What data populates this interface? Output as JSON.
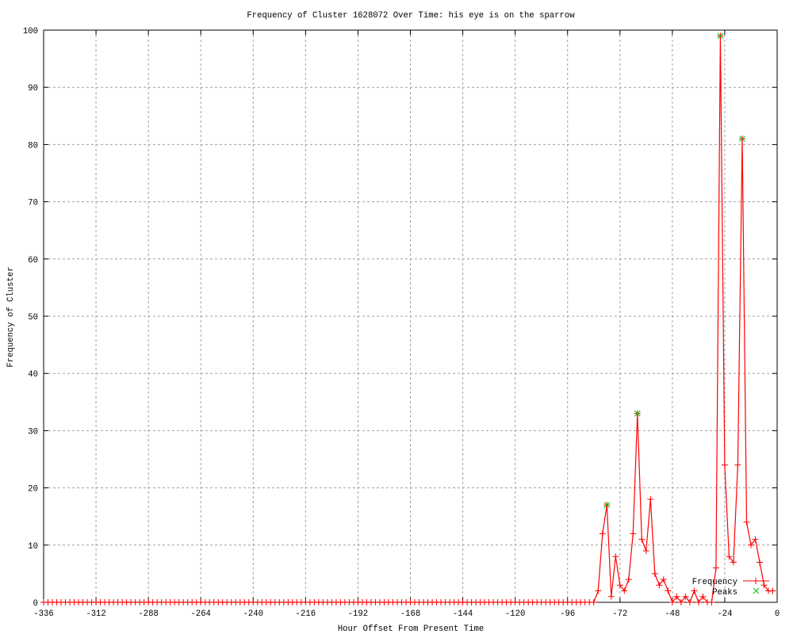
{
  "chart_data": {
    "type": "line",
    "title": "Frequency of Cluster 1628072 Over Time: his eye is on the sparrow",
    "xlabel": "Hour Offset From Present Time",
    "ylabel": "Frequency of Cluster",
    "xlim": [
      -336,
      0
    ],
    "ylim": [
      0,
      100
    ],
    "xticks": [
      -336,
      -312,
      -288,
      -264,
      -240,
      -216,
      -192,
      -168,
      -144,
      -120,
      -96,
      -72,
      -48,
      -24,
      0
    ],
    "yticks": [
      0,
      10,
      20,
      30,
      40,
      50,
      60,
      70,
      80,
      90,
      100
    ],
    "grid": true,
    "legend_position": "bottom-right",
    "series": [
      {
        "name": "Frequency",
        "color": "#ff0000",
        "marker": "plus",
        "x": [
          -336,
          -334,
          -332,
          -330,
          -328,
          -326,
          -324,
          -322,
          -320,
          -318,
          -316,
          -314,
          -312,
          -310,
          -308,
          -306,
          -304,
          -302,
          -300,
          -298,
          -296,
          -294,
          -292,
          -290,
          -288,
          -286,
          -284,
          -282,
          -280,
          -278,
          -276,
          -274,
          -272,
          -270,
          -268,
          -266,
          -264,
          -262,
          -260,
          -258,
          -256,
          -254,
          -252,
          -250,
          -248,
          -246,
          -244,
          -242,
          -240,
          -238,
          -236,
          -234,
          -232,
          -230,
          -228,
          -226,
          -224,
          -222,
          -220,
          -218,
          -216,
          -214,
          -212,
          -210,
          -208,
          -206,
          -204,
          -202,
          -200,
          -198,
          -196,
          -194,
          -192,
          -190,
          -188,
          -186,
          -184,
          -182,
          -180,
          -178,
          -176,
          -174,
          -172,
          -170,
          -168,
          -166,
          -164,
          -162,
          -160,
          -158,
          -156,
          -154,
          -152,
          -150,
          -148,
          -146,
          -144,
          -142,
          -140,
          -138,
          -136,
          -134,
          -132,
          -130,
          -128,
          -126,
          -124,
          -122,
          -120,
          -118,
          -116,
          -114,
          -112,
          -110,
          -108,
          -106,
          -104,
          -102,
          -100,
          -98,
          -96,
          -94,
          -92,
          -90,
          -88,
          -86,
          -84,
          -82,
          -80,
          -78,
          -76,
          -74,
          -72,
          -70,
          -68,
          -66,
          -64,
          -62,
          -60,
          -58,
          -56,
          -54,
          -52,
          -50,
          -48,
          -46,
          -44,
          -42,
          -40,
          -38,
          -36,
          -34,
          -32,
          -30,
          -28,
          -26,
          -24,
          -22,
          -20,
          -18,
          -16,
          -14,
          -12,
          -10,
          -8,
          -6,
          -4,
          -2
        ],
        "y": [
          0,
          0,
          0,
          0,
          0,
          0,
          0,
          0,
          0,
          0,
          0,
          0,
          0,
          0,
          0,
          0,
          0,
          0,
          0,
          0,
          0,
          0,
          0,
          0,
          0,
          0,
          0,
          0,
          0,
          0,
          0,
          0,
          0,
          0,
          0,
          0,
          0,
          0,
          0,
          0,
          0,
          0,
          0,
          0,
          0,
          0,
          0,
          0,
          0,
          0,
          0,
          0,
          0,
          0,
          0,
          0,
          0,
          0,
          0,
          0,
          0,
          0,
          0,
          0,
          0,
          0,
          0,
          0,
          0,
          0,
          0,
          0,
          0,
          0,
          0,
          0,
          0,
          0,
          0,
          0,
          0,
          0,
          0,
          0,
          0,
          0,
          0,
          0,
          0,
          0,
          0,
          0,
          0,
          0,
          0,
          0,
          0,
          0,
          0,
          0,
          0,
          0,
          0,
          0,
          0,
          0,
          0,
          0,
          0,
          0,
          0,
          0,
          0,
          0,
          0,
          0,
          0,
          0,
          0,
          0,
          0,
          0,
          0,
          0,
          0,
          0,
          0,
          2,
          12,
          17,
          1,
          8,
          3,
          2,
          4,
          12,
          33,
          11,
          9,
          18,
          5,
          3,
          4,
          2,
          0,
          1,
          0,
          1,
          0,
          2,
          0,
          1,
          0,
          0,
          6,
          99,
          24,
          8,
          7,
          24,
          81,
          14,
          10,
          11,
          7,
          3,
          2,
          2
        ]
      },
      {
        "name": "Peaks",
        "color": "#00c000",
        "marker": "cross",
        "x": [
          -78,
          -64,
          -26,
          -16
        ],
        "y": [
          17,
          33,
          99,
          81
        ]
      }
    ]
  }
}
